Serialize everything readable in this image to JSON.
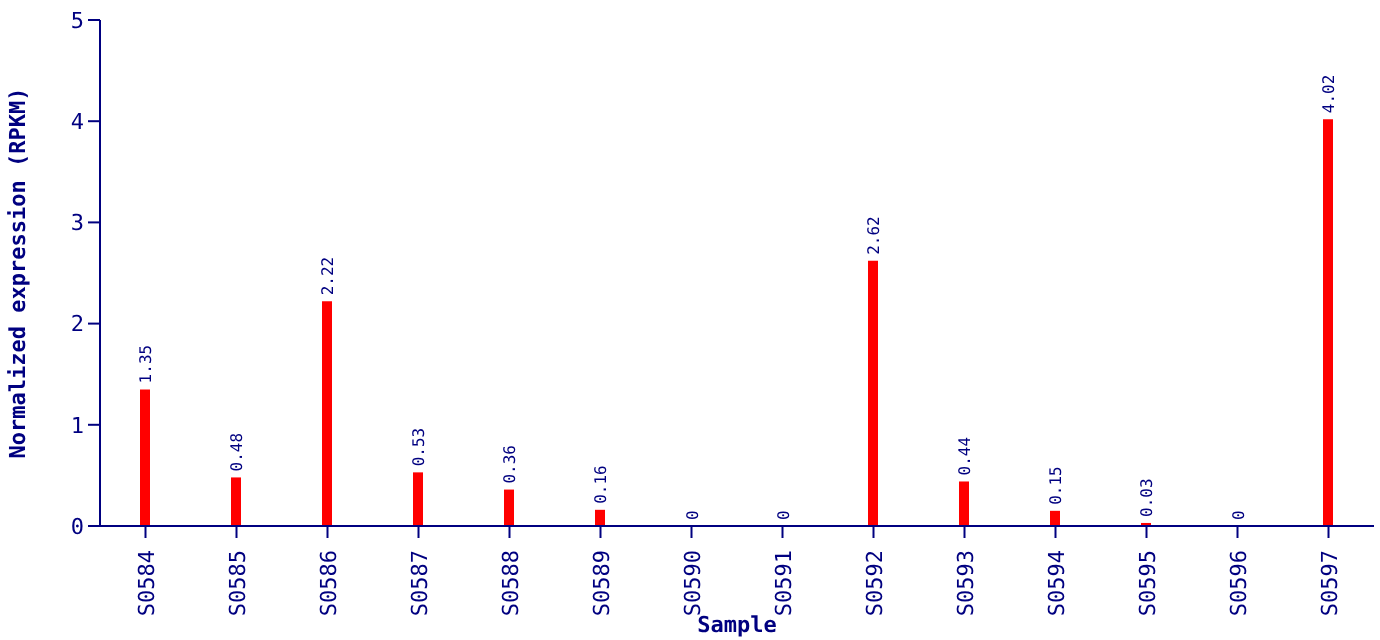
{
  "chart_data": {
    "type": "bar",
    "xlabel": "Sample",
    "ylabel": "Normalized expression (RPKM)",
    "categories": [
      "S0584",
      "S0585",
      "S0586",
      "S0587",
      "S0588",
      "S0589",
      "S0590",
      "S0591",
      "S0592",
      "S0593",
      "S0594",
      "S0595",
      "S0596",
      "S0597"
    ],
    "values": [
      1.35,
      0.48,
      2.22,
      0.53,
      0.36,
      0.16,
      0,
      0,
      2.62,
      0.44,
      0.15,
      0.03,
      0,
      4.02
    ],
    "color": "#ff0000",
    "ylim": [
      0,
      5
    ],
    "yticks": [
      0,
      1,
      2,
      3,
      4,
      5
    ],
    "data_labels": true,
    "grid": false,
    "legend": false
  }
}
